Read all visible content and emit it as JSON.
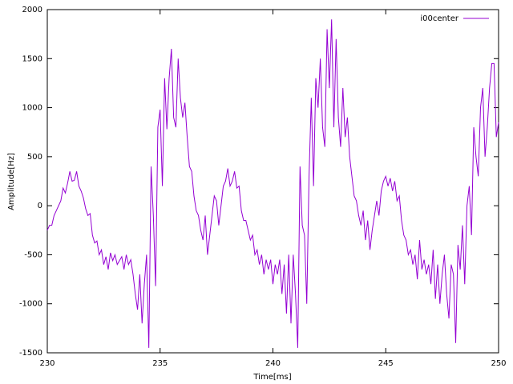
{
  "chart_data": {
    "type": "line",
    "x_label": "Time[ms]",
    "y_label": "Amplitude[Hz]",
    "xlim": [
      230,
      250
    ],
    "xticks": [
      230,
      235,
      240,
      245,
      250
    ],
    "ylim": [
      -1500,
      2000
    ],
    "yticks": [
      -1500,
      -1000,
      -500,
      0,
      500,
      1000,
      1500,
      2000
    ],
    "grid": false,
    "legend": "top-right",
    "x": [
      230.0,
      230.1,
      230.2,
      230.3,
      230.4,
      230.5,
      230.6,
      230.7,
      230.8,
      230.9,
      231.0,
      231.1,
      231.2,
      231.3,
      231.4,
      231.5,
      231.6,
      231.7,
      231.8,
      231.9,
      232.0,
      232.1,
      232.2,
      232.3,
      232.4,
      232.5,
      232.6,
      232.7,
      232.8,
      232.9,
      233.0,
      233.1,
      233.2,
      233.3,
      233.4,
      233.5,
      233.6,
      233.7,
      233.8,
      233.9,
      234.0,
      234.1,
      234.2,
      234.3,
      234.4,
      234.5,
      234.6,
      234.7,
      234.8,
      234.9,
      235.0,
      235.1,
      235.2,
      235.3,
      235.4,
      235.5,
      235.6,
      235.7,
      235.8,
      235.9,
      236.0,
      236.1,
      236.2,
      236.3,
      236.4,
      236.5,
      236.6,
      236.7,
      236.8,
      236.9,
      237.0,
      237.1,
      237.2,
      237.3,
      237.4,
      237.5,
      237.6,
      237.7,
      237.8,
      237.9,
      238.0,
      238.1,
      238.2,
      238.3,
      238.4,
      238.5,
      238.6,
      238.7,
      238.8,
      238.9,
      239.0,
      239.1,
      239.2,
      239.3,
      239.4,
      239.5,
      239.6,
      239.7,
      239.8,
      239.9,
      240.0,
      240.1,
      240.2,
      240.3,
      240.4,
      240.5,
      240.6,
      240.7,
      240.8,
      240.9,
      241.0,
      241.1,
      241.2,
      241.3,
      241.4,
      241.5,
      241.6,
      241.7,
      241.8,
      241.9,
      242.0,
      242.1,
      242.2,
      242.3,
      242.4,
      242.5,
      242.6,
      242.7,
      242.8,
      242.9,
      243.0,
      243.1,
      243.2,
      243.3,
      243.4,
      243.5,
      243.6,
      243.7,
      243.8,
      243.9,
      244.0,
      244.1,
      244.2,
      244.3,
      244.4,
      244.5,
      244.6,
      244.7,
      244.8,
      244.9,
      245.0,
      245.1,
      245.2,
      245.3,
      245.4,
      245.5,
      245.6,
      245.7,
      245.8,
      245.9,
      246.0,
      246.1,
      246.2,
      246.3,
      246.4,
      246.5,
      246.6,
      246.7,
      246.8,
      246.9,
      247.0,
      247.1,
      247.2,
      247.3,
      247.4,
      247.5,
      247.6,
      247.7,
      247.8,
      247.9,
      248.0,
      248.1,
      248.2,
      248.3,
      248.4,
      248.5,
      248.6,
      248.7,
      248.8,
      248.9,
      249.0,
      249.1,
      249.2,
      249.3,
      249.4,
      249.5,
      249.6,
      249.7,
      249.8,
      249.9,
      250.0
    ],
    "series": [
      {
        "name": "i00center",
        "color": "#9400d3",
        "values": [
          -250,
          -200,
          -200,
          -100,
          -50,
          0,
          50,
          180,
          130,
          230,
          350,
          250,
          260,
          350,
          200,
          150,
          80,
          -30,
          -100,
          -80,
          -300,
          -380,
          -360,
          -500,
          -450,
          -600,
          -520,
          -650,
          -480,
          -560,
          -500,
          -600,
          -560,
          -520,
          -650,
          -500,
          -600,
          -550,
          -700,
          -900,
          -1060,
          -700,
          -1200,
          -800,
          -500,
          -1450,
          400,
          -100,
          -820,
          800,
          980,
          200,
          1300,
          780,
          1300,
          1600,
          900,
          800,
          1500,
          1100,
          900,
          1050,
          700,
          400,
          350,
          100,
          -50,
          -100,
          -250,
          -350,
          -100,
          -500,
          -300,
          -100,
          100,
          50,
          -200,
          0,
          200,
          250,
          380,
          200,
          250,
          350,
          180,
          200,
          -50,
          -150,
          -150,
          -250,
          -350,
          -300,
          -500,
          -450,
          -600,
          -500,
          -700,
          -550,
          -650,
          -550,
          -800,
          -600,
          -700,
          -550,
          -900,
          -600,
          -1100,
          -500,
          -1200,
          -500,
          -900,
          -1450,
          400,
          -200,
          -300,
          -1000,
          300,
          1100,
          200,
          1300,
          1000,
          1500,
          800,
          600,
          1800,
          1200,
          1900,
          800,
          1700,
          900,
          600,
          1200,
          700,
          900,
          500,
          300,
          100,
          50,
          -100,
          -200,
          -50,
          -350,
          -150,
          -450,
          -250,
          -100,
          50,
          -100,
          150,
          250,
          300,
          200,
          280,
          150,
          250,
          50,
          100,
          -150,
          -300,
          -350,
          -500,
          -450,
          -600,
          -500,
          -750,
          -350,
          -650,
          -550,
          -700,
          -600,
          -800,
          -450,
          -950,
          -600,
          -1000,
          -700,
          -500,
          -900,
          -1150,
          -600,
          -700,
          -1400,
          -400,
          -650,
          -200,
          -800,
          0,
          200,
          -300,
          800,
          500,
          300,
          1000,
          1200,
          500,
          800,
          1200,
          1450,
          1450,
          700,
          850
        ]
      }
    ]
  }
}
